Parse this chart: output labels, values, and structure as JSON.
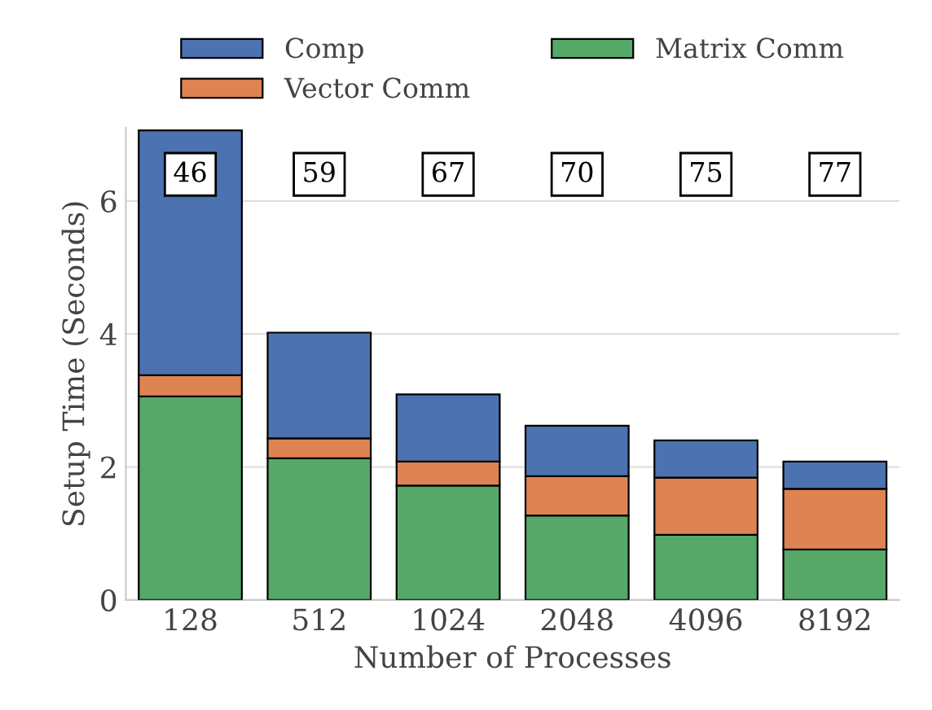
{
  "chart_data": {
    "type": "bar",
    "stacked": true,
    "xlabel": "Number of Processes",
    "ylabel": "Setup Time (Seconds)",
    "categories": [
      "128",
      "512",
      "1024",
      "2048",
      "4096",
      "8192"
    ],
    "series": [
      {
        "name": "Matrix Comm",
        "color": "#55a868",
        "values": [
          3.06,
          2.13,
          1.72,
          1.27,
          0.98,
          0.76
        ]
      },
      {
        "name": "Vector Comm",
        "color": "#dd8452",
        "values": [
          0.32,
          0.3,
          0.36,
          0.59,
          0.86,
          0.91
        ]
      },
      {
        "name": "Comp",
        "color": "#4c72b0",
        "values": [
          3.68,
          1.59,
          1.01,
          0.76,
          0.56,
          0.41
        ]
      }
    ],
    "ylim": [
      0,
      7.1
    ],
    "yticks": [
      0,
      2,
      4,
      6
    ],
    "grid": "y",
    "legend": "top",
    "annotations": [
      {
        "text": "46",
        "x": "128",
        "y": 6.4
      },
      {
        "text": "59",
        "x": "512",
        "y": 6.4
      },
      {
        "text": "67",
        "x": "1024",
        "y": 6.4
      },
      {
        "text": "70",
        "x": "2048",
        "y": 6.4
      },
      {
        "text": "75",
        "x": "4096",
        "y": 6.4
      },
      {
        "text": "77",
        "x": "8192",
        "y": 6.4
      }
    ]
  }
}
